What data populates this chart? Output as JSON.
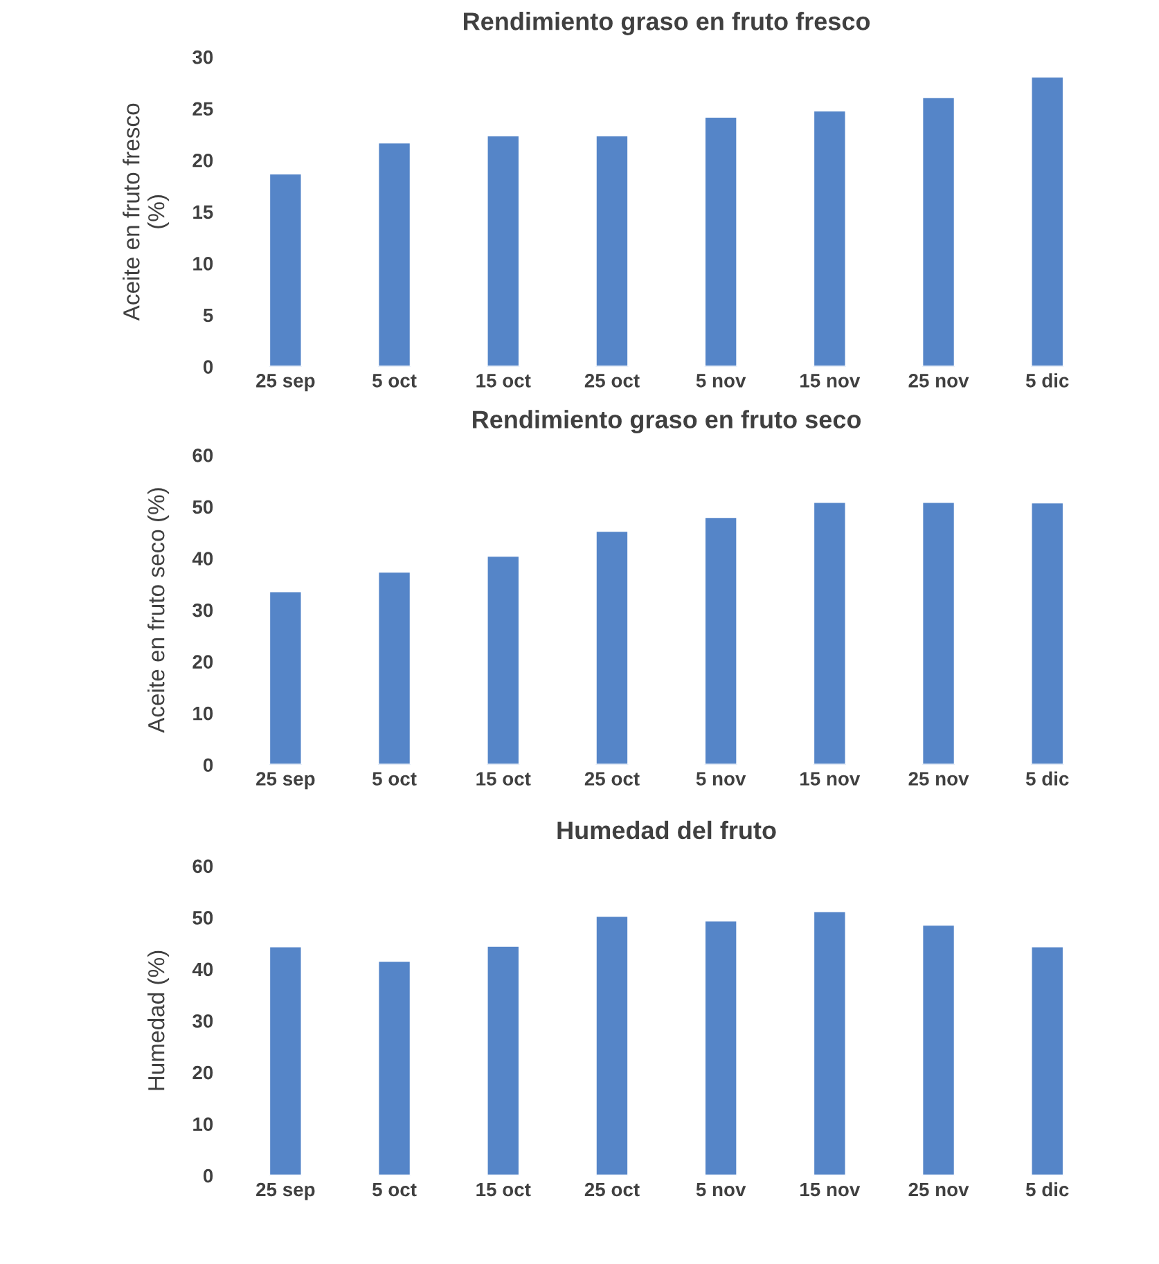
{
  "chart_data": [
    {
      "type": "bar",
      "title": "Rendimiento graso en fruto fresco",
      "ylabel": "Aceite en fruto fresco\n(%)",
      "categories": [
        "25 sep",
        "5 oct",
        "15 oct",
        "25 oct",
        "5 nov",
        "15 nov",
        "25 nov",
        "5 dic"
      ],
      "values": [
        18.7,
        21.7,
        22.4,
        22.4,
        24.2,
        24.8,
        26.1,
        28.1
      ],
      "color": "#5585c8",
      "ylim": [
        0,
        30
      ],
      "yticks": [
        0,
        5,
        10,
        15,
        20,
        25,
        30
      ],
      "grid": false,
      "legend": false
    },
    {
      "type": "bar",
      "title": "Rendimiento graso en fruto seco",
      "ylabel": "Aceite en fruto seco (%)",
      "categories": [
        "25 sep",
        "5 oct",
        "15 oct",
        "25 oct",
        "5 nov",
        "15 nov",
        "25 nov",
        "5 dic"
      ],
      "values": [
        33.6,
        37.4,
        40.5,
        45.3,
        48.0,
        50.9,
        50.9,
        50.8
      ],
      "color": "#5585c8",
      "ylim": [
        0,
        60
      ],
      "yticks": [
        0,
        10,
        20,
        30,
        40,
        50,
        60
      ],
      "grid": false,
      "legend": false
    },
    {
      "type": "bar",
      "title": "Humedad del fruto",
      "ylabel": "Humedad (%)",
      "categories": [
        "25 sep",
        "5 oct",
        "15 oct",
        "25 oct",
        "5 nov",
        "15 nov",
        "25 nov",
        "5 dic"
      ],
      "values": [
        44.4,
        41.6,
        44.5,
        50.3,
        49.4,
        51.2,
        48.6,
        44.4
      ],
      "color": "#5585c8",
      "ylim": [
        0,
        60
      ],
      "yticks": [
        0,
        10,
        20,
        30,
        40,
        50,
        60
      ],
      "grid": false,
      "legend": false
    }
  ]
}
